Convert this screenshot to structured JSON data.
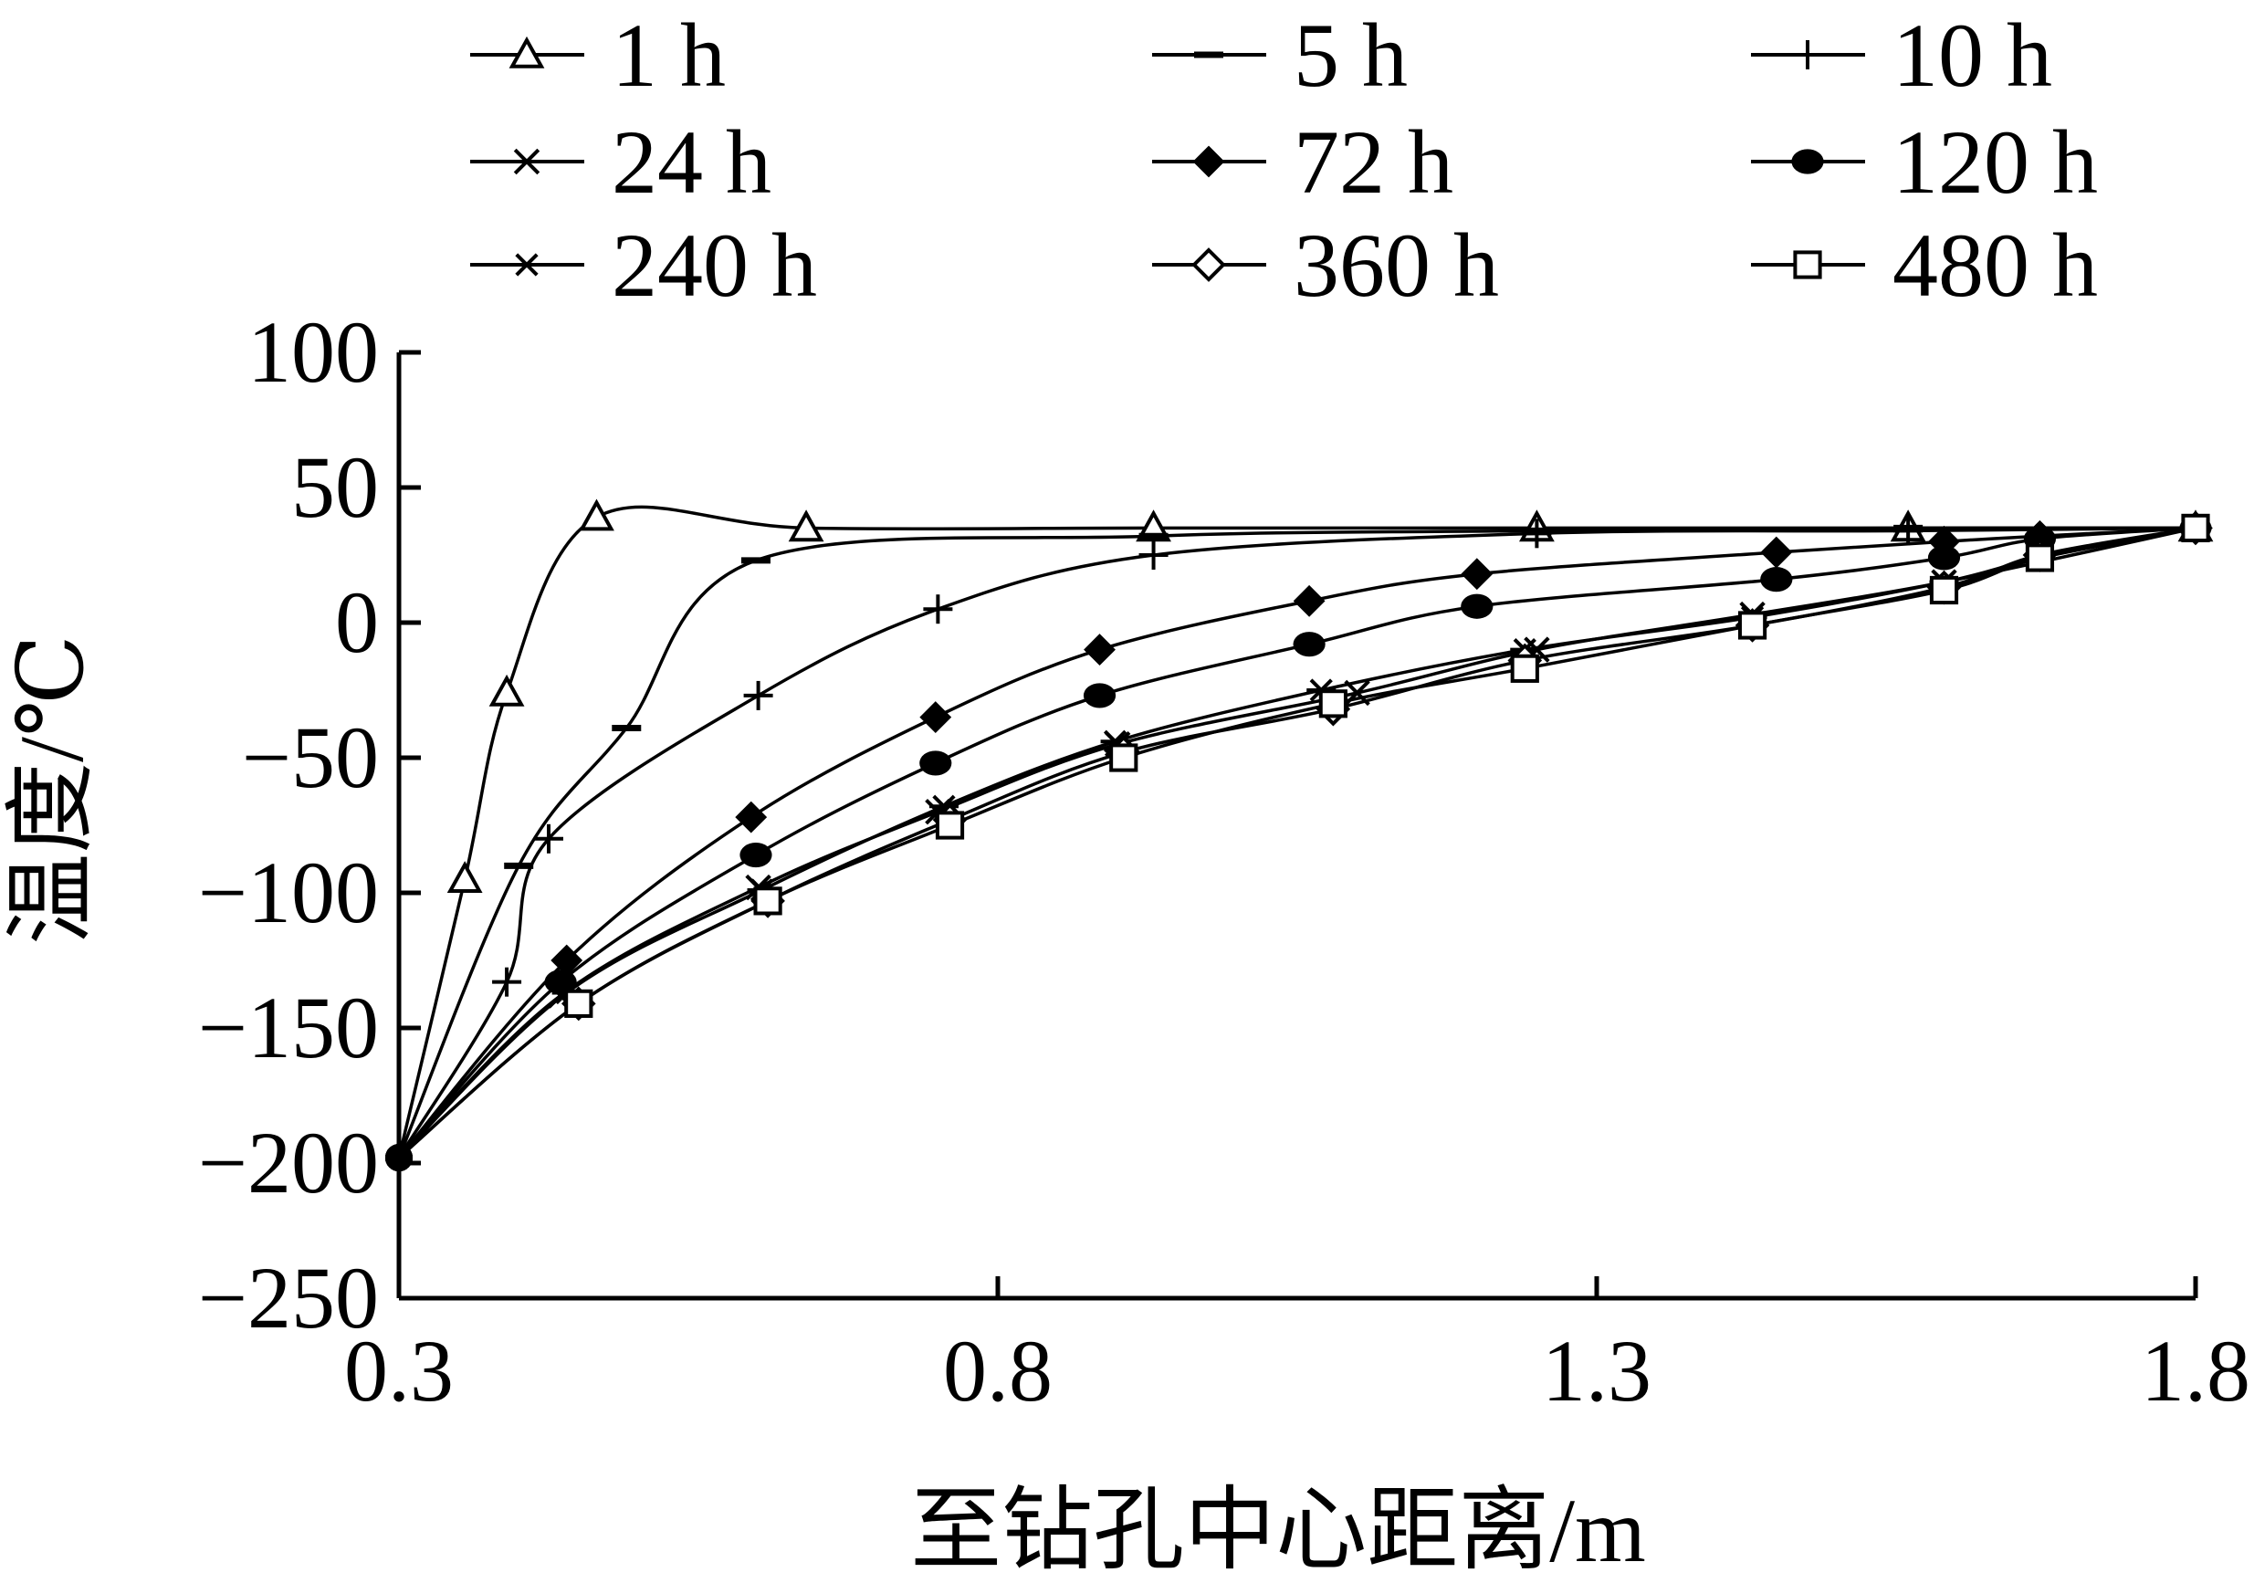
{
  "chart_data": {
    "type": "line",
    "title": "",
    "xlabel": "至钻孔中心距离/m",
    "ylabel": "温度/℃",
    "xlim": [
      0.3,
      1.8
    ],
    "ylim": [
      -250,
      100
    ],
    "xticks": [
      "0.3",
      "0.8",
      "1.3",
      "1.8"
    ],
    "yticks": [
      "100",
      "50",
      "0",
      "−50",
      "−100",
      "−150",
      "−200",
      "−250"
    ],
    "grid": false,
    "legend_position": "top",
    "series": [
      {
        "name": "1 h",
        "marker": "triangle-open",
        "x": [
          0.3,
          0.355,
          0.39,
          0.465,
          0.64,
          0.93,
          1.25,
          1.56,
          1.8
        ],
        "y": [
          -198,
          -95,
          -26,
          39,
          35,
          35,
          35,
          35,
          35
        ]
      },
      {
        "name": "5 h",
        "marker": "dash",
        "x": [
          0.3,
          0.4,
          0.49,
          0.598,
          0.93,
          1.25,
          1.56,
          1.8
        ],
        "y": [
          -198,
          -90,
          -39,
          23,
          32,
          34,
          35,
          35
        ]
      },
      {
        "name": "10 h",
        "marker": "plus",
        "x": [
          0.3,
          0.39,
          0.425,
          0.6,
          0.75,
          0.93,
          1.25,
          1.56,
          1.8
        ],
        "y": [
          -198,
          -133,
          -80,
          -27,
          5,
          25,
          33,
          34,
          35
        ]
      },
      {
        "name": "24 h",
        "marker": "x",
        "x": [
          0.3,
          0.435,
          0.6,
          0.75,
          0.9,
          1.1,
          1.25,
          1.43,
          1.59,
          1.8
        ],
        "y": [
          -198,
          -138,
          -98,
          -70,
          -45,
          -26,
          -10,
          3,
          15,
          35
        ]
      },
      {
        "name": "72 h",
        "marker": "diamond-filled",
        "x": [
          0.3,
          0.44,
          0.594,
          0.748,
          0.885,
          1.06,
          1.2,
          1.45,
          1.59,
          1.67,
          1.8
        ],
        "y": [
          -198,
          -125,
          -72,
          -35,
          -10,
          8,
          18,
          26,
          30,
          32,
          35
        ]
      },
      {
        "name": "120 h",
        "marker": "circle-filled",
        "x": [
          0.3,
          0.435,
          0.598,
          0.748,
          0.885,
          1.06,
          1.2,
          1.45,
          1.59,
          1.67,
          1.8
        ],
        "y": [
          -198,
          -133,
          -86,
          -52,
          -27,
          -8,
          6,
          16,
          24,
          31,
          35
        ]
      },
      {
        "name": "240 h",
        "marker": "asterisk",
        "x": [
          0.3,
          0.44,
          0.603,
          0.755,
          0.898,
          1.07,
          1.24,
          1.43,
          1.59,
          1.67,
          1.8
        ],
        "y": [
          -198,
          -137,
          -99,
          -68,
          -44,
          -25,
          -10,
          2,
          15,
          24,
          35
        ]
      },
      {
        "name": "360 h",
        "marker": "diamond-open",
        "x": [
          0.3,
          0.45,
          0.608,
          0.76,
          0.905,
          1.08,
          1.24,
          1.43,
          1.59,
          1.67,
          1.8
        ],
        "y": [
          -198,
          -141,
          -103,
          -73,
          -48,
          -32,
          -14,
          -1,
          13,
          25,
          35
        ]
      },
      {
        "name": "480 h",
        "marker": "square-open",
        "x": [
          0.3,
          0.45,
          0.608,
          0.76,
          0.905,
          1.08,
          1.24,
          1.43,
          1.59,
          1.67,
          1.8
        ],
        "y": [
          -198,
          -141,
          -103,
          -75,
          -50,
          -30,
          -17,
          -1,
          12,
          24,
          35
        ]
      }
    ]
  }
}
